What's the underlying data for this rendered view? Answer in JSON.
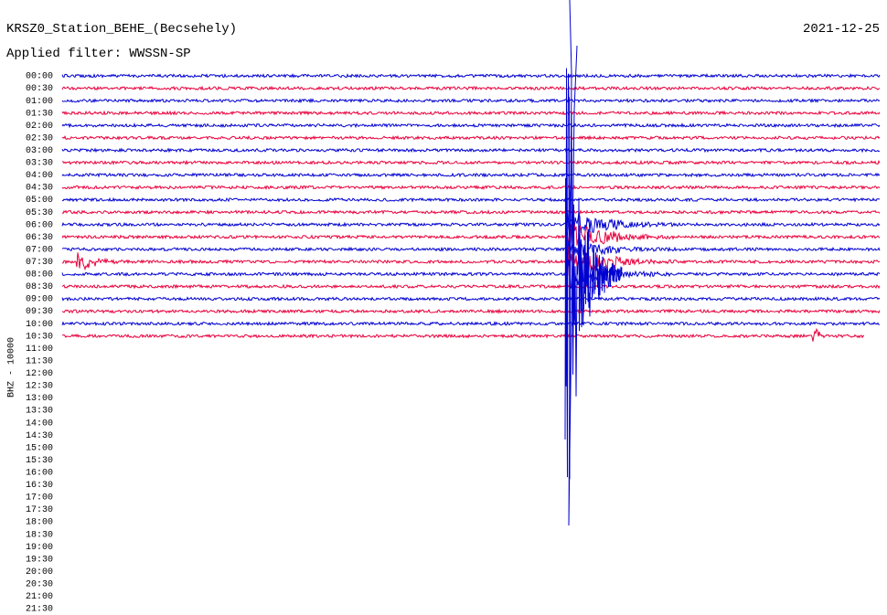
{
  "header": {
    "title": "KRSZ0_Station_BEHE_(Becsehely)",
    "date": "2021-12-25",
    "filter": "Applied filter: WWSSN-SP"
  },
  "axis_label": "BHZ - 10000",
  "rows": [
    "00:00",
    "00:30",
    "01:00",
    "01:30",
    "02:00",
    "02:30",
    "03:00",
    "03:30",
    "04:00",
    "04:30",
    "05:00",
    "05:30",
    "06:00",
    "06:30",
    "07:00",
    "07:30",
    "08:00",
    "08:30",
    "09:00",
    "09:30",
    "10:00",
    "10:30",
    "11:00",
    "11:30",
    "12:00",
    "12:30",
    "13:00",
    "13:30",
    "14:00",
    "14:30",
    "15:00",
    "15:30",
    "16:00",
    "16:30",
    "17:00",
    "17:30",
    "18:00",
    "18:30",
    "19:00",
    "19:30",
    "20:00",
    "20:30",
    "21:00",
    "21:30"
  ]
}
